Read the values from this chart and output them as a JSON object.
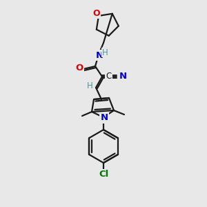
{
  "bg_color": "#e8e8e8",
  "bond_color": "#1a1a1a",
  "atom_colors": {
    "O": "#dd0000",
    "N": "#0000cc",
    "Cl": "#007700",
    "C": "#1a1a1a",
    "H": "#4a9a9a"
  },
  "figsize": [
    3.0,
    3.0
  ],
  "dpi": 100,
  "lw": 1.6
}
